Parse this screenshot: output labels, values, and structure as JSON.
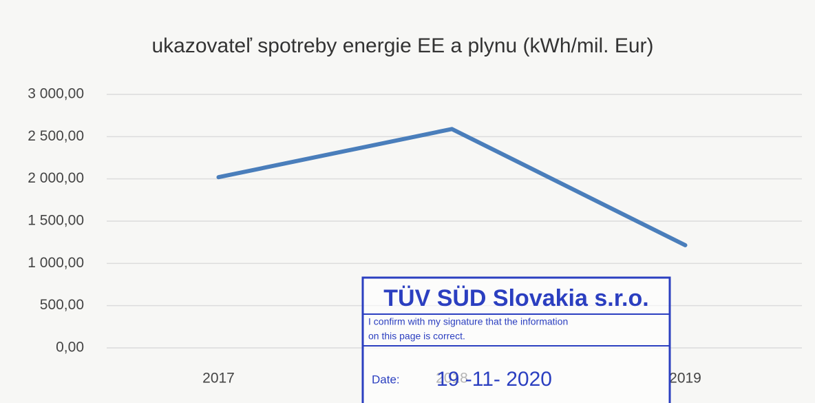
{
  "chart_data": {
    "type": "line",
    "title": "ukazovateľ spotreby energie EE a plynu (kWh/mil. Eur)",
    "categories": [
      "2017",
      "2018",
      "2019"
    ],
    "series": [
      {
        "name": "ukazovateľ",
        "color": "#4a7ebb",
        "values": [
          2020,
          2590,
          1215
        ]
      }
    ],
    "ylim": [
      0,
      3000
    ],
    "yticks": [
      {
        "value": 0,
        "label": "0,00"
      },
      {
        "value": 500,
        "label": "500,00"
      },
      {
        "value": 1000,
        "label": "1 000,00"
      },
      {
        "value": 1500,
        "label": "1 500,00"
      },
      {
        "value": 2000,
        "label": "2 000,00"
      },
      {
        "value": 2500,
        "label": "2 500,00"
      },
      {
        "value": 3000,
        "label": "3 000,00"
      }
    ],
    "grid": true
  },
  "stamp": {
    "company": "TÜV SÜD Slovakia s.r.o.",
    "confirm_line1": "I confirm with my signature that the information",
    "confirm_line2": "on this page is correct.",
    "date_label": "Date:",
    "date": "19 -11- 2020"
  }
}
